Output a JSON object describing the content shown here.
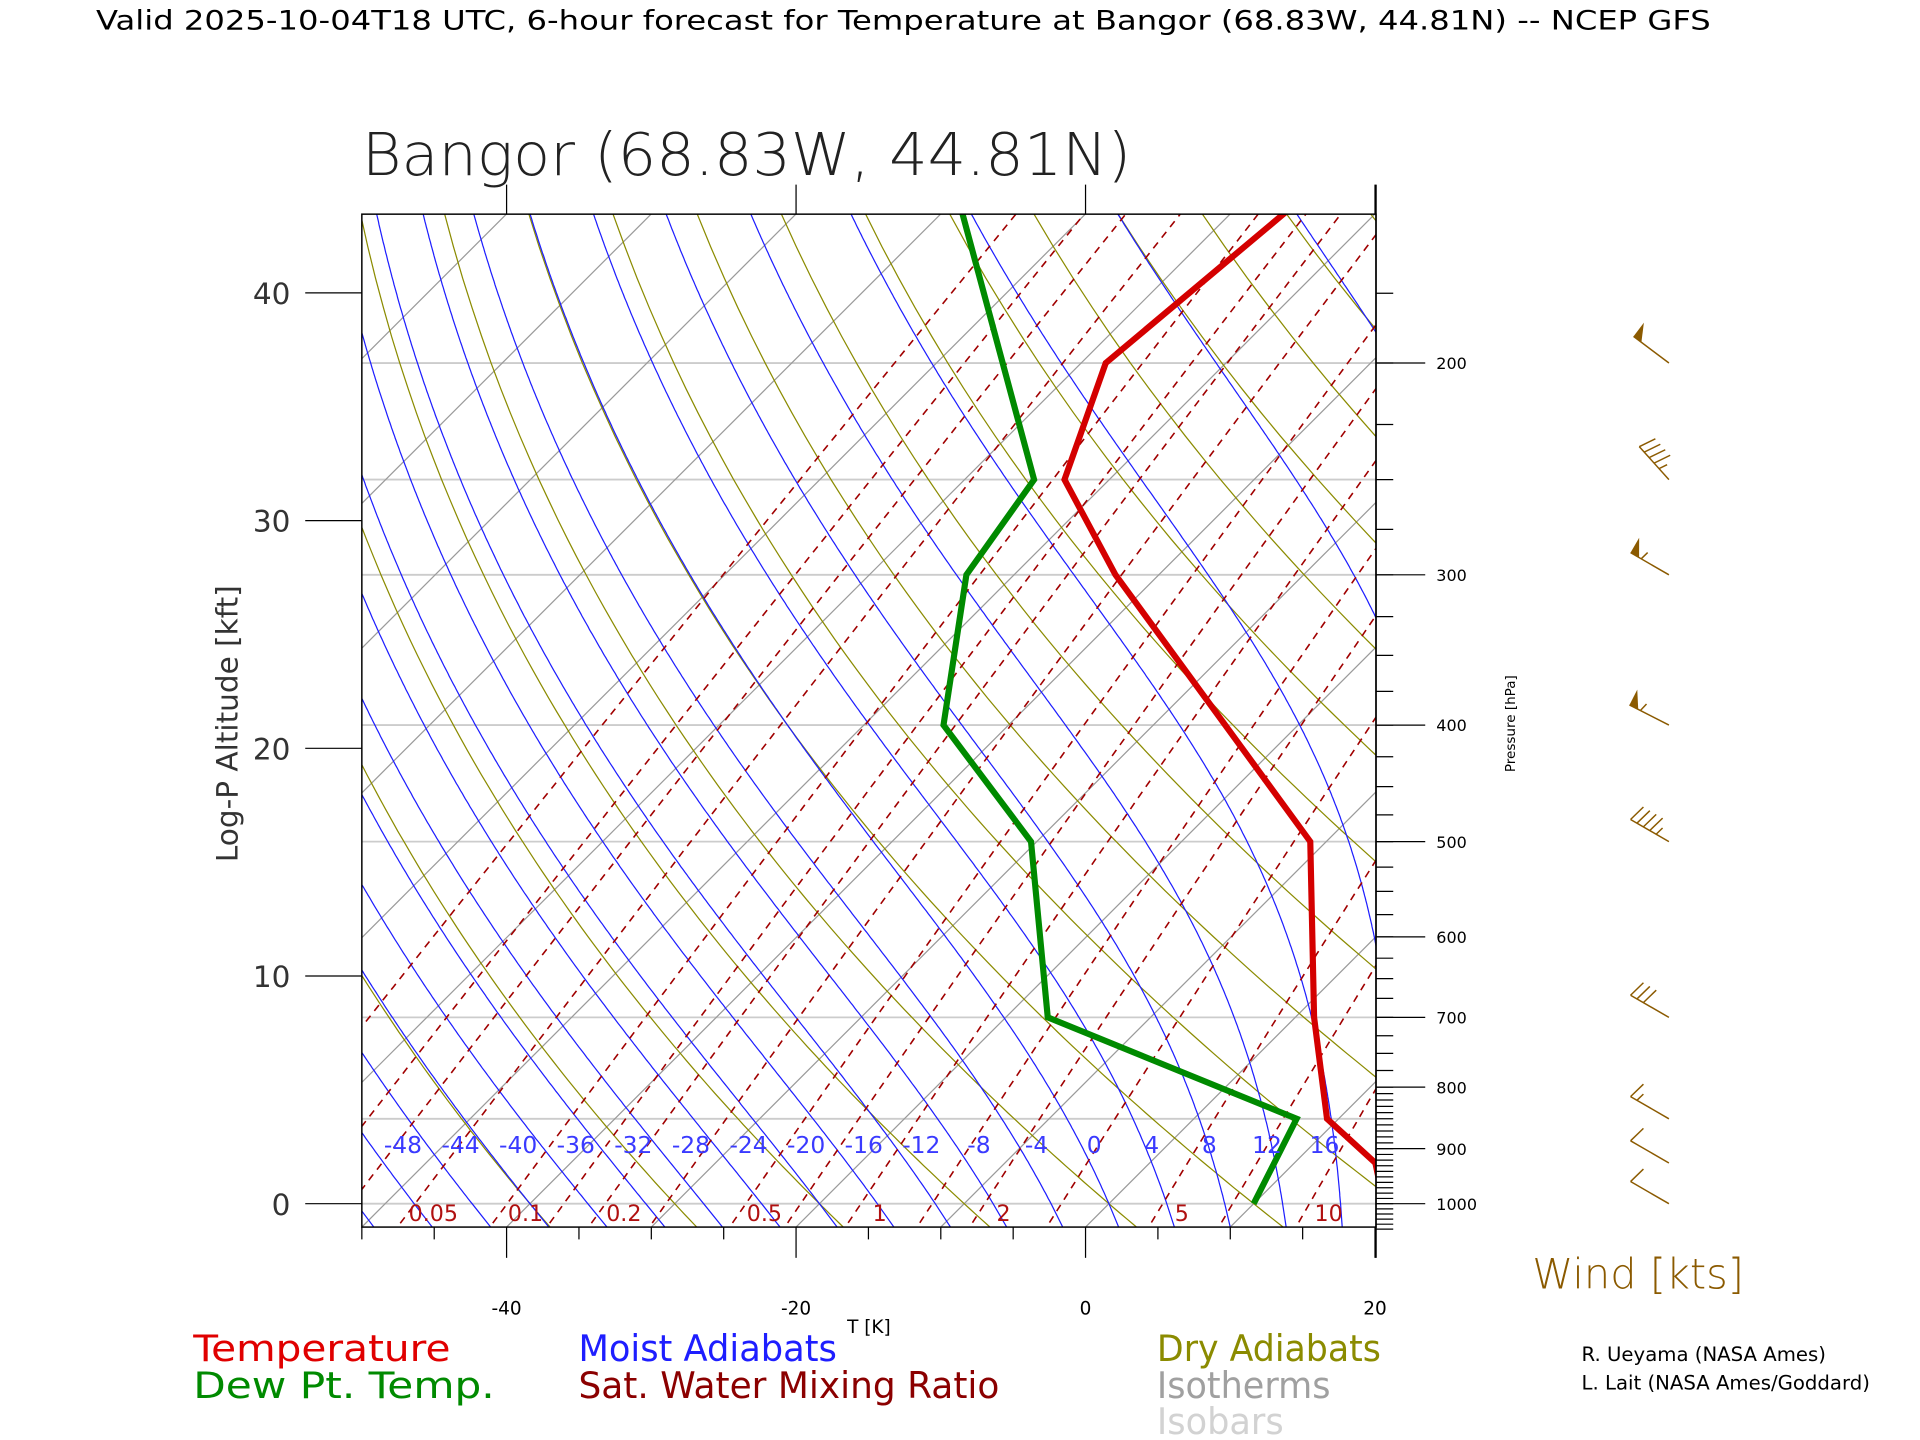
{
  "header": {
    "title": "Valid 2025-10-04T18 UTC, 6-hour forecast for Temperature at Bangor (68.83W, 44.81N) -- NCEP GFS"
  },
  "chart_data": {
    "type": "line",
    "title": "Bangor (68.83W, 44.81N)",
    "xlabel": "T [K]",
    "ylabel": "Log-P Altitude [kft]",
    "y2label": "Pressure [hPa]",
    "xlim": [
      -50,
      20
    ],
    "x_ticks": [
      "-40",
      "-20",
      "0",
      "20"
    ],
    "ylim_hpa": [
      1045,
      150
    ],
    "y_ticks_kft": [
      "0",
      "10",
      "20",
      "30",
      "40"
    ],
    "y2_ticks_hpa": [
      "1000",
      "900",
      "800",
      "700",
      "600",
      "500",
      "400",
      "300",
      "200"
    ],
    "isobars_hpa": [
      1000,
      850,
      700,
      500,
      400,
      300,
      250,
      200
    ],
    "series": [
      {
        "name": "Temperature",
        "color": "#d40000",
        "points": [
          [
            1000,
            19.0
          ],
          [
            925,
            15.6
          ],
          [
            850,
            9.2
          ],
          [
            700,
            1.3
          ],
          [
            500,
            -11.1
          ],
          [
            300,
            -43.0
          ],
          [
            250,
            -53.1
          ],
          [
            200,
            -58.3
          ],
          [
            150,
            -56.3
          ]
        ]
      },
      {
        "name": "Dew Pt. Temp.",
        "color": "#008a00",
        "points": [
          [
            1000,
            10.0
          ],
          [
            850,
            7.1
          ],
          [
            700,
            -17.1
          ],
          [
            500,
            -30.4
          ],
          [
            400,
            -44.5
          ],
          [
            300,
            -53.3
          ],
          [
            250,
            -55.2
          ],
          [
            150,
            -78.6
          ]
        ]
      }
    ],
    "moist_adiabat_labels": [
      "-48",
      "-44",
      "-40",
      "-36",
      "-32",
      "-28",
      "-24",
      "-20",
      "-16",
      "-12",
      "-8",
      "-4",
      "0",
      "4",
      "8",
      "12",
      "16"
    ],
    "mixing_ratio_labels": [
      "0.05",
      "0.1",
      "0.2",
      "0.5",
      "1",
      "2",
      "5",
      "10"
    ],
    "wind": {
      "label": "Wind [kts]",
      "barbs": [
        {
          "p": 200,
          "speed_kt": 50,
          "dir_deg": 307
        },
        {
          "p": 250,
          "speed_kt": 45,
          "dir_deg": 318
        },
        {
          "p": 300,
          "speed_kt": 55,
          "dir_deg": 300
        },
        {
          "p": 400,
          "speed_kt": 55,
          "dir_deg": 297
        },
        {
          "p": 500,
          "speed_kt": 45,
          "dir_deg": 300
        },
        {
          "p": 700,
          "speed_kt": 30,
          "dir_deg": 300
        },
        {
          "p": 850,
          "speed_kt": 15,
          "dir_deg": 300
        },
        {
          "p": 925,
          "speed_kt": 10,
          "dir_deg": 300
        },
        {
          "p": 1000,
          "speed_kt": 10,
          "dir_deg": 300
        }
      ]
    },
    "legend": [
      {
        "label": "Temperature",
        "color": "#e00000"
      },
      {
        "label": "Dew Pt. Temp.",
        "color": "#008a00"
      },
      {
        "label": "Moist Adiabats",
        "color": "#1e1eff"
      },
      {
        "label": "Sat. Water Mixing Ratio",
        "color": "#8b0000"
      },
      {
        "label": "Dry Adiabats",
        "color": "#8b8b00"
      },
      {
        "label": "Isotherms",
        "color": "#a0a0a0"
      },
      {
        "label": "Isobars",
        "color": "#d2d2d2"
      }
    ],
    "credits": [
      "R. Ueyama (NASA Ames)",
      "L. Lait (NASA Ames/Goddard)"
    ]
  }
}
